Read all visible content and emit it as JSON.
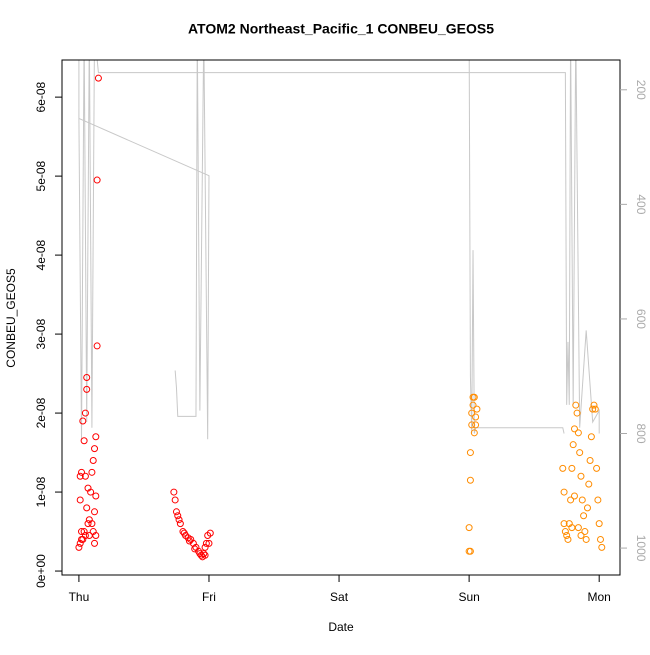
{
  "chart_data": {
    "type": "scatter",
    "title": "ATOM2 Northeast_Pacific_1 CONBEU_GEOS5",
    "x_label": "Date",
    "y_label": "CONBEU_GEOS5",
    "xlim": [
      -0.13,
      4.16
    ],
    "xticks": [
      {
        "value": 0,
        "label": "Thu"
      },
      {
        "value": 1,
        "label": "Fri"
      },
      {
        "value": 2,
        "label": "Sat"
      },
      {
        "value": 3,
        "label": "Sun"
      },
      {
        "value": 4,
        "label": "Mon"
      }
    ],
    "ylim": [
      -5e-10,
      6.47e-08
    ],
    "yticks": [
      {
        "value": 0,
        "label": "0e+00"
      },
      {
        "value": 1e-08,
        "label": "1e-08"
      },
      {
        "value": 2e-08,
        "label": "2e-08"
      },
      {
        "value": 3e-08,
        "label": "3e-08"
      },
      {
        "value": 4e-08,
        "label": "4e-08"
      },
      {
        "value": 5e-08,
        "label": "5e-08"
      },
      {
        "value": 6e-08,
        "label": "6e-08"
      }
    ],
    "y2lim": [
      1047,
      148
    ],
    "y2ticks": [
      200,
      400,
      600,
      800,
      1000
    ],
    "series": [
      {
        "type": "scatter",
        "color": "#ff0000",
        "x": [
          0.0,
          0.01,
          0.02,
          0.01,
          0.02,
          0.01,
          0.03,
          0.04,
          0.05,
          0.06,
          0.06,
          0.05,
          0.04,
          0.05,
          0.07,
          0.08,
          0.06,
          0.03,
          0.09,
          0.1,
          0.11,
          0.12,
          0.13,
          0.11,
          0.12,
          0.13,
          0.14,
          0.14,
          0.15,
          0.1,
          0.02,
          0.08,
          0.07,
          0.12,
          0.13,
          0.73,
          0.74,
          0.75,
          0.76,
          0.77,
          0.78,
          0.8,
          0.82,
          0.84,
          0.86,
          0.88,
          0.9,
          0.92,
          0.94,
          0.95,
          0.96,
          0.97,
          0.98,
          0.99,
          1.0,
          1.01,
          0.97,
          0.93,
          0.89,
          0.85,
          0.81
        ],
        "values": [
          3e-09,
          3.5e-09,
          4e-09,
          1.2e-08,
          1.25e-08,
          9e-09,
          1.9e-08,
          1.65e-08,
          2e-08,
          2.45e-08,
          2.3e-08,
          1.2e-08,
          5e-09,
          4.5e-09,
          6e-09,
          6.5e-09,
          8e-09,
          4e-09,
          1e-08,
          1.25e-08,
          1.4e-08,
          1.55e-08,
          1.7e-08,
          5e-09,
          3.5e-09,
          4.5e-09,
          2.85e-08,
          4.95e-08,
          6.24e-08,
          6e-09,
          5e-09,
          4.5e-09,
          1.05e-08,
          7.5e-09,
          9.5e-09,
          1e-08,
          9e-09,
          7.5e-09,
          7e-09,
          6.5e-09,
          6e-09,
          5e-09,
          4.5e-09,
          4.2e-09,
          4e-09,
          3.5e-09,
          3e-09,
          2.5e-09,
          2e-09,
          1.8e-09,
          2.2e-09,
          3e-09,
          3.5e-09,
          4.5e-09,
          3.5e-09,
          4.8e-09,
          2e-09,
          2.2e-09,
          2.8e-09,
          3.8e-09,
          4.8e-09
        ]
      },
      {
        "type": "scatter",
        "color": "#ff8c00",
        "x": [
          3.0,
          3.01,
          3.0,
          3.01,
          3.01,
          3.02,
          3.02,
          3.03,
          3.03,
          3.04,
          3.05,
          3.06,
          3.04,
          3.05,
          3.72,
          3.73,
          3.73,
          3.74,
          3.75,
          3.76,
          3.77,
          3.78,
          3.79,
          3.8,
          3.81,
          3.82,
          3.83,
          3.84,
          3.85,
          3.86,
          3.87,
          3.88,
          3.89,
          3.9,
          3.91,
          3.92,
          3.93,
          3.94,
          3.95,
          3.96,
          3.97,
          3.98,
          3.99,
          4.0,
          4.01,
          4.02,
          3.81,
          3.84,
          3.86,
          3.79
        ],
        "values": [
          2.5e-09,
          2.5e-09,
          5.5e-09,
          1.15e-08,
          1.5e-08,
          1.85e-08,
          2e-08,
          2.1e-08,
          2.2e-08,
          2.2e-08,
          1.95e-08,
          2.05e-08,
          1.75e-08,
          1.85e-08,
          1.3e-08,
          1e-08,
          6e-09,
          5e-09,
          4.5e-09,
          4e-09,
          6e-09,
          9e-09,
          1.3e-08,
          1.6e-08,
          1.8e-08,
          2.1e-08,
          2e-08,
          1.75e-08,
          1.5e-08,
          1.2e-08,
          9e-09,
          7e-09,
          5e-09,
          4e-09,
          8e-09,
          1.1e-08,
          1.4e-08,
          1.7e-08,
          2.05e-08,
          2.1e-08,
          2.05e-08,
          1.3e-08,
          9e-09,
          6e-09,
          4e-09,
          3e-09,
          9.5e-09,
          5.5e-09,
          4.5e-09,
          5.5e-09
        ]
      },
      {
        "type": "line",
        "axis": "y2",
        "color": "#c8c8c8",
        "x": [
          0.0,
          0.0,
          0.02,
          0.04,
          0.06,
          0.08,
          0.1,
          0.12,
          0.15,
          3.74,
          3.75,
          3.76,
          3.77,
          3.78,
          3.8,
          3.82,
          3.85,
          3.9,
          3.95,
          4.0,
          4.0,
          null,
          0.74,
          0.75,
          0.76,
          0.8,
          0.9,
          0.91,
          0.93,
          0.96,
          0.99,
          1.0,
          0.0,
          null,
          3.0,
          3.01,
          3.02,
          3.03,
          3.04,
          3.05,
          3.72,
          3.73
        ],
        "values": [
          100,
          250,
          810,
          100,
          780,
          100,
          790,
          100,
          170,
          170,
          750,
          640,
          750,
          100,
          750,
          100,
          790,
          620,
          780,
          760,
          800,
          null,
          690,
          720,
          770,
          770,
          770,
          100,
          760,
          100,
          810,
          350,
          250,
          null,
          100,
          700,
          800,
          480,
          800,
          790,
          790,
          800
        ]
      }
    ]
  }
}
